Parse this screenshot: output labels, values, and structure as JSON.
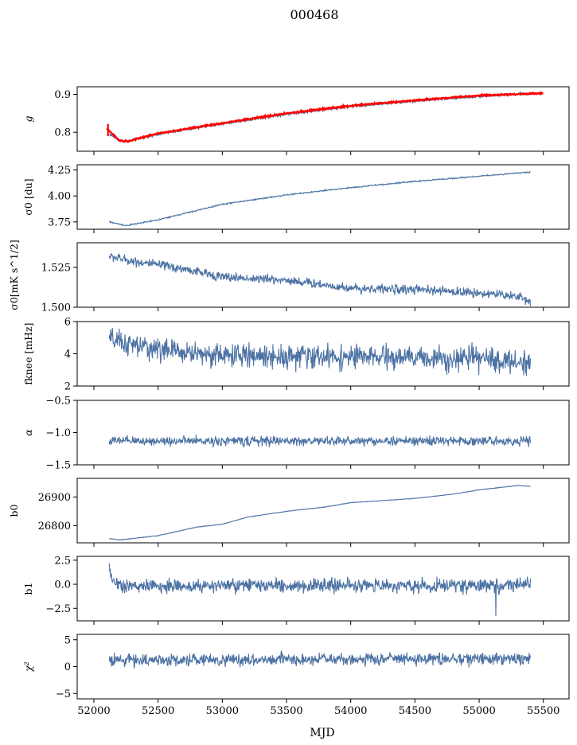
{
  "figure": {
    "title": "000468",
    "xlabel": "MJD"
  },
  "colors": {
    "line": "#4c72a4",
    "overlay": "#ff0000",
    "axis": "#000000"
  },
  "chart_data": {
    "type": "line",
    "shared_x": {
      "label": "MJD",
      "range": [
        51870,
        55700
      ],
      "ticks": [
        52000,
        52500,
        53000,
        53500,
        54000,
        54500,
        55000,
        55500
      ],
      "tick_labels": [
        "52000",
        "52500",
        "53000",
        "53500",
        "54000",
        "54500",
        "55000",
        "55500"
      ],
      "data_start": 52120,
      "data_end": 55400
    },
    "panels": [
      {
        "id": "g",
        "ylabel": "g",
        "ylim": [
          0.75,
          0.92
        ],
        "yticks": [
          0.8,
          0.9
        ],
        "ytick_labels": [
          "0.8",
          "0.9"
        ],
        "trend": [
          [
            52120,
            0.795
          ],
          [
            52200,
            0.778
          ],
          [
            52260,
            0.776
          ],
          [
            52500,
            0.795
          ],
          [
            53000,
            0.822
          ],
          [
            53500,
            0.848
          ],
          [
            54000,
            0.868
          ],
          [
            54500,
            0.882
          ],
          [
            55000,
            0.895
          ],
          [
            55400,
            0.902
          ]
        ],
        "noise": 0.002,
        "overlay": {
          "name": "red",
          "trend": [
            [
              52100,
              0.81
            ],
            [
              52200,
              0.778
            ],
            [
              52260,
              0.776
            ],
            [
              52500,
              0.797
            ],
            [
              53000,
              0.824
            ],
            [
              53500,
              0.85
            ],
            [
              54000,
              0.87
            ],
            [
              54500,
              0.884
            ],
            [
              55000,
              0.897
            ],
            [
              55500,
              0.903
            ]
          ],
          "spike": {
            "x": 52110,
            "y": 0.822
          }
        }
      },
      {
        "id": "sigma0_du",
        "ylabel": "σ0 [du]",
        "ylim": [
          3.68,
          4.3
        ],
        "yticks": [
          3.75,
          4.0,
          4.25
        ],
        "ytick_labels": [
          "3.75",
          "4.00",
          "4.25"
        ],
        "trend": [
          [
            52120,
            3.75
          ],
          [
            52250,
            3.715
          ],
          [
            52500,
            3.77
          ],
          [
            53000,
            3.92
          ],
          [
            53500,
            4.01
          ],
          [
            54000,
            4.08
          ],
          [
            54500,
            4.14
          ],
          [
            55000,
            4.19
          ],
          [
            55400,
            4.23
          ]
        ],
        "noise": 0.004
      },
      {
        "id": "sigma0_mK",
        "ylabel": "σ0[mK s^1/2]",
        "ylim": [
          1.5,
          1.5405
        ],
        "yticks": [
          1.5,
          1.525
        ],
        "ytick_labels": [
          "1.500",
          "1.525"
        ],
        "trend": [
          [
            52120,
            1.532
          ],
          [
            52300,
            1.529
          ],
          [
            52700,
            1.524
          ],
          [
            53000,
            1.519
          ],
          [
            53500,
            1.517
          ],
          [
            54000,
            1.512
          ],
          [
            54500,
            1.511
          ],
          [
            55000,
            1.509
          ],
          [
            55300,
            1.507
          ],
          [
            55400,
            1.503
          ]
        ],
        "noise": 0.0018
      },
      {
        "id": "fknee",
        "ylabel": "fknee [mHz]",
        "ylim": [
          2,
          6
        ],
        "yticks": [
          2,
          4,
          6
        ],
        "ytick_labels": [
          "2",
          "4",
          "6"
        ],
        "trend": [
          [
            52120,
            4.9
          ],
          [
            52300,
            4.5
          ],
          [
            52700,
            4.1
          ],
          [
            53000,
            3.9
          ],
          [
            54000,
            3.8
          ],
          [
            55000,
            3.7
          ],
          [
            55400,
            3.4
          ]
        ],
        "noise": 0.45
      },
      {
        "id": "alpha",
        "ylabel": "α",
        "ylim": [
          -1.5,
          -0.5
        ],
        "yticks": [
          -1.5,
          -1.0,
          -0.5
        ],
        "ytick_labels": [
          "−1.5",
          "−1.0",
          "−0.5"
        ],
        "trend": [
          [
            52120,
            -1.13
          ],
          [
            55400,
            -1.13
          ]
        ],
        "noise": 0.045
      },
      {
        "id": "b0",
        "ylabel": "b0",
        "ylim": [
          26740,
          26965
        ],
        "yticks": [
          26800,
          26900
        ],
        "ytick_labels": [
          "26800",
          "26900"
        ],
        "trend": [
          [
            52120,
            26755
          ],
          [
            52200,
            26750
          ],
          [
            52500,
            26765
          ],
          [
            52800,
            26795
          ],
          [
            53000,
            26805
          ],
          [
            53200,
            26830
          ],
          [
            53500,
            26850
          ],
          [
            53800,
            26865
          ],
          [
            54000,
            26880
          ],
          [
            54500,
            26895
          ],
          [
            54800,
            26910
          ],
          [
            55000,
            26925
          ],
          [
            55200,
            26935
          ],
          [
            55300,
            26940
          ],
          [
            55400,
            26937
          ]
        ],
        "noise": 0.6
      },
      {
        "id": "b1",
        "ylabel": "b1",
        "ylim": [
          -3.8,
          2.9
        ],
        "yticks": [
          -2.5,
          0.0,
          2.5
        ],
        "ytick_labels": [
          "−2.5",
          "0.0",
          "2.5"
        ],
        "trend": [
          [
            52120,
            1.5
          ],
          [
            52160,
            0.2
          ],
          [
            52250,
            -0.2
          ],
          [
            55400,
            -0.1
          ]
        ],
        "noise": 0.45,
        "spike": {
          "x": 55130,
          "y": -3.3
        }
      },
      {
        "id": "chi2",
        "ylabel": "χ²",
        "ylim": [
          -6,
          6
        ],
        "yticks": [
          -5,
          0,
          5
        ],
        "ytick_labels": [
          "−5",
          "0",
          "5"
        ],
        "trend": [
          [
            52120,
            1.2
          ],
          [
            55400,
            1.5
          ]
        ],
        "noise": 0.7
      }
    ]
  }
}
